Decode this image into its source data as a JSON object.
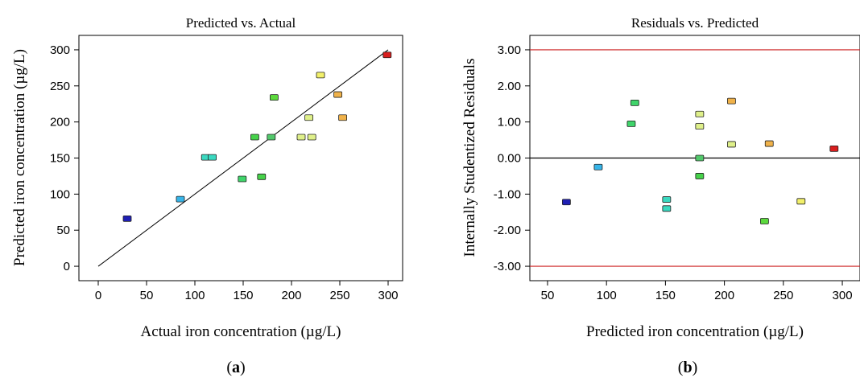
{
  "chart_data": [
    {
      "type": "scatter",
      "title": "Predicted vs. Actual",
      "xlabel": "Actual iron concentration (µg/L)",
      "ylabel": "Predicted iron concentration (µg/L)",
      "panel_letter": "a",
      "xlim": [
        -20,
        315
      ],
      "ylim": [
        -20,
        320
      ],
      "xticks": [
        0,
        50,
        100,
        150,
        200,
        250,
        300
      ],
      "yticks": [
        0,
        50,
        100,
        150,
        200,
        250,
        300
      ],
      "xtick_labels": [
        "0",
        "50",
        "100",
        "150",
        "200",
        "250",
        "300"
      ],
      "ytick_labels": [
        "0",
        "50",
        "100",
        "150",
        "200",
        "250",
        "300"
      ],
      "reference_line": {
        "x": [
          0,
          300
        ],
        "y": [
          0,
          300
        ],
        "color": "#000000"
      },
      "points": [
        {
          "x": 30,
          "y": 66,
          "color": "#1f1fb4"
        },
        {
          "x": 85,
          "y": 93,
          "color": "#36b4e8"
        },
        {
          "x": 111,
          "y": 151,
          "color": "#3ad9c0"
        },
        {
          "x": 118,
          "y": 151,
          "color": "#3ad9c0"
        },
        {
          "x": 149,
          "y": 121,
          "color": "#3fd46a"
        },
        {
          "x": 162,
          "y": 179,
          "color": "#46d24a"
        },
        {
          "x": 169,
          "y": 124,
          "color": "#46d24a"
        },
        {
          "x": 179,
          "y": 179,
          "color": "#52c86b"
        },
        {
          "x": 182,
          "y": 234,
          "color": "#5cd93d"
        },
        {
          "x": 210,
          "y": 179,
          "color": "#dff08a"
        },
        {
          "x": 218,
          "y": 206,
          "color": "#dff08a"
        },
        {
          "x": 221,
          "y": 179,
          "color": "#dff08a"
        },
        {
          "x": 230,
          "y": 265,
          "color": "#f2f06a"
        },
        {
          "x": 248,
          "y": 238,
          "color": "#f0b24a"
        },
        {
          "x": 253,
          "y": 206,
          "color": "#f0b24a"
        },
        {
          "x": 299,
          "y": 293,
          "color": "#d81e1e"
        }
      ]
    },
    {
      "type": "scatter",
      "title": "Residuals vs. Predicted",
      "xlabel": "Predicted iron concentration (µg/L)",
      "ylabel": "Internally Studentized Residuals",
      "panel_letter": "b",
      "xlim": [
        35,
        315
      ],
      "ylim": [
        -3.4,
        3.4
      ],
      "xticks": [
        50,
        100,
        150,
        200,
        250,
        300
      ],
      "yticks": [
        -3,
        -2,
        -1,
        0,
        1,
        2,
        3
      ],
      "xtick_labels": [
        "50",
        "100",
        "150",
        "200",
        "250",
        "300"
      ],
      "ytick_labels": [
        "-3.00",
        "-2.00",
        "-1.00",
        "0.00",
        "1.00",
        "2.00",
        "3.00"
      ],
      "reference_lines": [
        {
          "y": 3.0,
          "color": "#cc1f1f"
        },
        {
          "y": 0.0,
          "color": "#000000"
        },
        {
          "y": -3.0,
          "color": "#cc1f1f"
        }
      ],
      "points": [
        {
          "x": 66,
          "y": -1.22,
          "color": "#1f1fb4"
        },
        {
          "x": 93,
          "y": -0.25,
          "color": "#36b4e8"
        },
        {
          "x": 121,
          "y": 0.95,
          "color": "#3fd46a"
        },
        {
          "x": 124,
          "y": 1.53,
          "color": "#3fd46a"
        },
        {
          "x": 151,
          "y": -1.15,
          "color": "#3ad9c0"
        },
        {
          "x": 151,
          "y": -1.4,
          "color": "#3ad9c0"
        },
        {
          "x": 179,
          "y": 1.22,
          "color": "#dff08a"
        },
        {
          "x": 179,
          "y": 0.88,
          "color": "#dff08a"
        },
        {
          "x": 179,
          "y": 0.0,
          "color": "#52c86b"
        },
        {
          "x": 179,
          "y": -0.5,
          "color": "#46d24a"
        },
        {
          "x": 206,
          "y": 1.58,
          "color": "#f0b24a"
        },
        {
          "x": 206,
          "y": 0.38,
          "color": "#dff08a"
        },
        {
          "x": 234,
          "y": -1.75,
          "color": "#5cd93d"
        },
        {
          "x": 238,
          "y": 0.4,
          "color": "#f0b24a"
        },
        {
          "x": 265,
          "y": -1.2,
          "color": "#f2f06a"
        },
        {
          "x": 293,
          "y": 0.26,
          "color": "#d81e1e"
        }
      ]
    }
  ]
}
